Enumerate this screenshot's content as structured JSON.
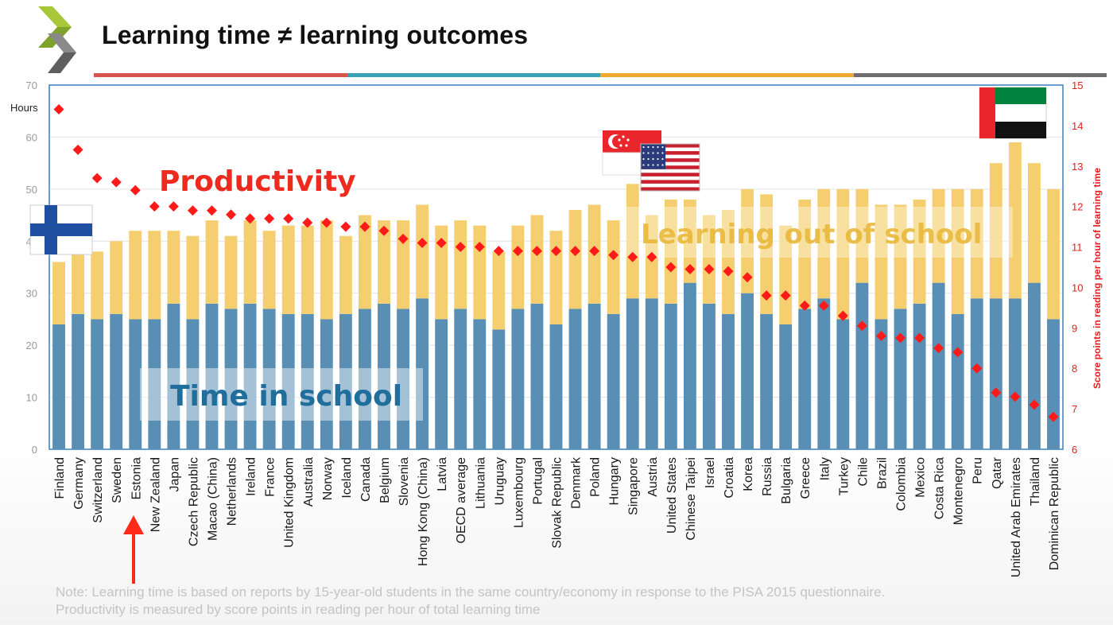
{
  "header": {
    "title": "Learning time ≠ learning outcomes",
    "rule_colors": [
      "#d9534f",
      "#3aa0b5",
      "#f0a830",
      "#6e6e6e"
    ],
    "logo_icon": "oecd-chevron-logo"
  },
  "overlays": {
    "productivity": "Productivity",
    "learning_out_of_school": "Learning out of school",
    "time_in_school": "Time in school"
  },
  "flags": [
    "finland-flag-icon",
    "singapore-flag-icon",
    "usa-flag-icon",
    "uae-flag-icon"
  ],
  "arrow_icon": "red-up-arrow-icon",
  "note": {
    "line1": "Note: Learning time is based on reports by 15-year-old students in the same country/economy in response to the PISA 2015 questionnaire.",
    "line2": "Productivity is measured by score points in reading per hour of total learning time"
  },
  "chart_data": {
    "type": "bar",
    "stacked": true,
    "categories": [
      "Finland",
      "Germany",
      "Switzerland",
      "Sweden",
      "Estonia",
      "New Zealand",
      "Japan",
      "Czech Republic",
      "Macao (China)",
      "Netherlands",
      "Ireland",
      "France",
      "United Kingdom",
      "Australia",
      "Norway",
      "Iceland",
      "Canada",
      "Belgium",
      "Slovenia",
      "Hong Kong (China)",
      "Latvia",
      "OECD average",
      "Lithuania",
      "Uruguay",
      "Luxembourg",
      "Portugal",
      "Slovak Republic",
      "Denmark",
      "Poland",
      "Hungary",
      "Singapore",
      "Austria",
      "United States",
      "Chinese Taipei",
      "Israel",
      "Croatia",
      "Korea",
      "Russia",
      "Bulgaria",
      "Greece",
      "Italy",
      "Turkey",
      "Chile",
      "Brazil",
      "Colombia",
      "Mexico",
      "Costa Rica",
      "Montenegro",
      "Peru",
      "Qatar",
      "United Arab Emirates",
      "Thailand",
      "Dominican Republic"
    ],
    "series": [
      {
        "values": [
          24,
          26,
          25,
          26,
          25,
          25,
          28,
          25,
          28,
          27,
          28,
          27,
          26,
          26,
          25,
          26,
          27,
          28,
          27,
          29,
          25,
          27,
          25,
          23,
          27,
          28,
          24,
          27,
          28,
          26,
          29,
          29,
          28,
          32,
          28,
          26,
          30,
          26,
          24,
          27,
          29,
          25,
          32,
          25,
          27,
          28,
          32,
          26,
          29,
          29,
          29,
          32,
          25
        ],
        "color": "#5a8fb5"
      },
      {
        "values": [
          12,
          12,
          13,
          14,
          17,
          17,
          14,
          16,
          16,
          14,
          16,
          15,
          17,
          17,
          19,
          15,
          18,
          16,
          17,
          18,
          18,
          17,
          18,
          15,
          16,
          17,
          18,
          19,
          19,
          18,
          22,
          16,
          20,
          16,
          17,
          20,
          20,
          23,
          19,
          21,
          21,
          25,
          18,
          22,
          20,
          20,
          18,
          24,
          21,
          26,
          30,
          23,
          25
        ],
        "color": "#f5cf6f"
      },
      {
        "axis": "right",
        "values": [
          14.4,
          13.4,
          12.7,
          12.6,
          12.4,
          12.0,
          12.0,
          11.9,
          11.9,
          11.8,
          11.7,
          11.7,
          11.7,
          11.6,
          11.6,
          11.5,
          11.5,
          11.4,
          11.2,
          11.1,
          11.1,
          11.0,
          11.0,
          10.9,
          10.9,
          10.9,
          10.9,
          10.9,
          10.9,
          10.8,
          10.75,
          10.75,
          10.5,
          10.45,
          10.45,
          10.4,
          10.25,
          9.8,
          9.8,
          9.55,
          9.55,
          9.3,
          9.05,
          8.8,
          8.75,
          8.75,
          8.5,
          8.4,
          8.0,
          7.4,
          7.3,
          7.1,
          6.8
        ],
        "color": "#ff1a1a"
      }
    ],
    "ylabel": "Hours",
    "ylim": [
      0,
      70
    ],
    "yticks": [
      0,
      10,
      20,
      30,
      40,
      50,
      60,
      70
    ],
    "y2label": "Score points in reading per hour of learning time",
    "y2lim": [
      6,
      15
    ],
    "y2ticks": [
      6,
      7,
      8,
      9,
      10,
      11,
      12,
      13,
      14,
      15
    ],
    "grid": true,
    "highlight_category": "Estonia"
  }
}
